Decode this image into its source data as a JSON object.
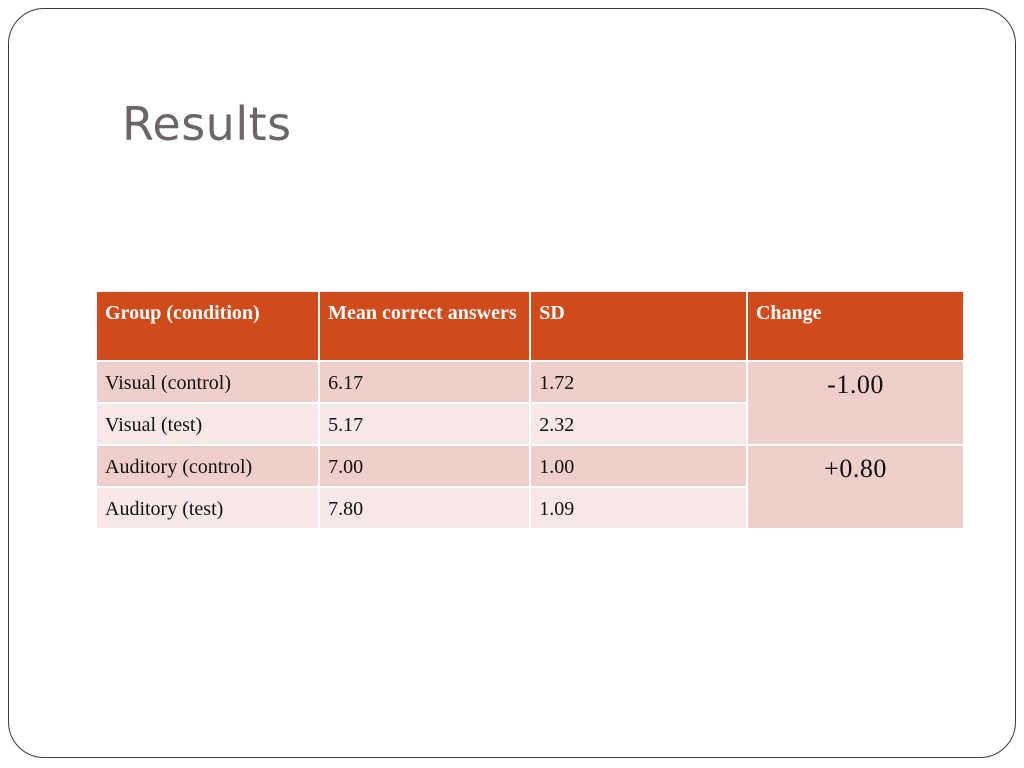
{
  "slide": {
    "title": "Results"
  },
  "table": {
    "headers": [
      "Group (condition)",
      "Mean correct answers",
      "SD",
      "Change"
    ],
    "rows": [
      {
        "group": "Visual (control)",
        "mean": "6.17",
        "sd": "1.72"
      },
      {
        "group": "Visual (test)",
        "mean": "5.17",
        "sd": "2.32"
      },
      {
        "group": "Auditory (control)",
        "mean": "7.00",
        "sd": "1.00"
      },
      {
        "group": "Auditory (test)",
        "mean": "7.80",
        "sd": "1.09"
      }
    ],
    "changes": [
      "-1.00",
      "+0.80"
    ]
  },
  "colors": {
    "header_bg": "#d04b1b",
    "row_dark": "#efcfcc",
    "row_light": "#f7e8e7",
    "title": "#6b6566"
  }
}
